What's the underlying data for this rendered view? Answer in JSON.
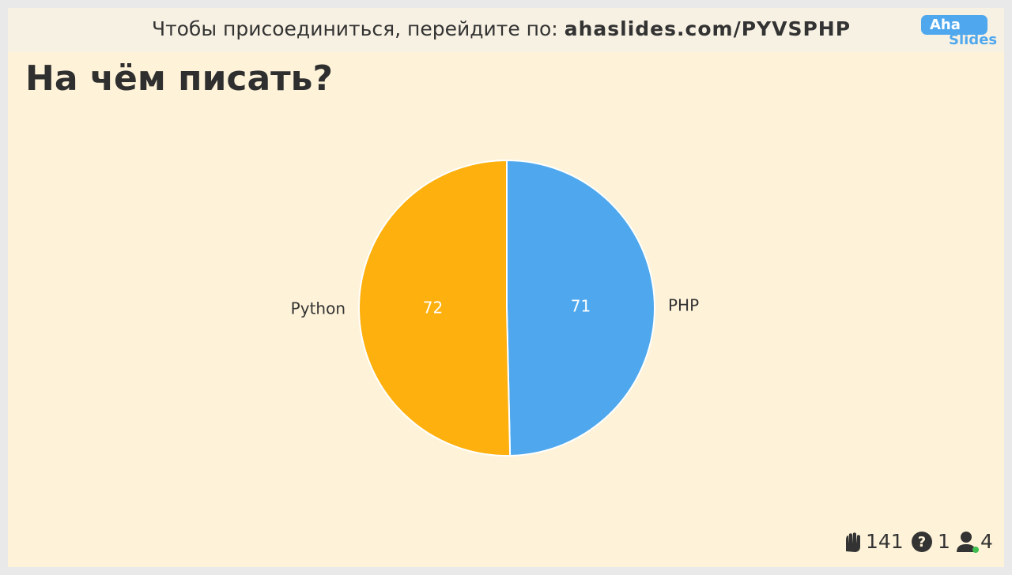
{
  "header": {
    "join_text": "Чтобы присоединиться, перейдите по:",
    "join_url": "ahaslides.com/PYVSPHP",
    "logo_top": "Aha",
    "logo_bottom": "Slides"
  },
  "chart_data": {
    "type": "pie",
    "title": "На чём писать?",
    "categories": [
      "PHP",
      "Python"
    ],
    "values": [
      71,
      72
    ],
    "colors": [
      "#4fa8ee",
      "#fdb00e"
    ]
  },
  "footer": {
    "reactions": 141,
    "questions": 1,
    "participants": 4
  }
}
